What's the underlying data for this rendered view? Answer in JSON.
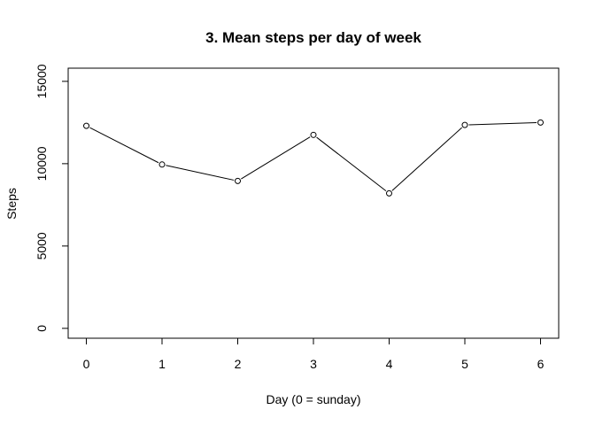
{
  "chart_data": {
    "type": "line",
    "title": "3. Mean steps per day of week",
    "xlabel": "Day (0 = sunday)",
    "ylabel": "Steps",
    "x": [
      0,
      1,
      2,
      3,
      4,
      5,
      6
    ],
    "x_ticks": [
      "0",
      "1",
      "2",
      "3",
      "4",
      "5",
      "6"
    ],
    "y_ticks": [
      "0",
      "5000",
      "10000",
      "15000"
    ],
    "xlim": [
      -0.24,
      6.24
    ],
    "ylim": [
      -600,
      15800
    ],
    "grid": false,
    "point_style": "open-circle",
    "line_color": "#000000",
    "series": [
      {
        "values": [
          12300,
          9950,
          8950,
          11750,
          8200,
          12350,
          12500
        ]
      }
    ]
  }
}
